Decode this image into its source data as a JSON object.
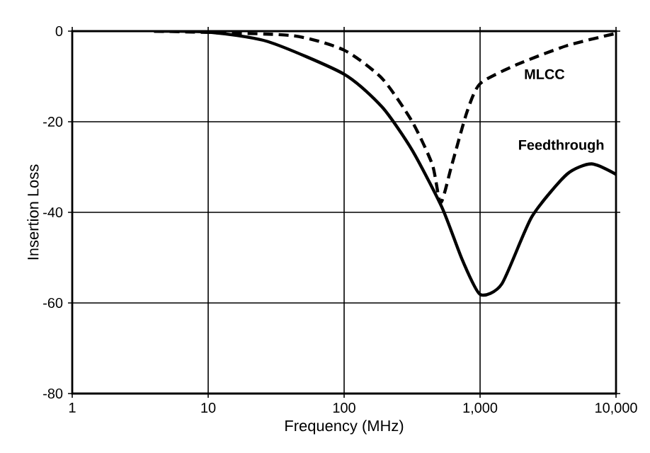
{
  "chart_data": {
    "type": "line",
    "xlabel": "Frequency (MHz)",
    "ylabel": "Insertion Loss",
    "log": "x",
    "xlim": [
      1,
      10000
    ],
    "ylim": [
      -80,
      0
    ],
    "xticks": [
      1,
      10,
      100,
      {
        "value": 1000,
        "label": "1,000"
      },
      {
        "value": 10000,
        "label": "10,000"
      }
    ],
    "yticks": [
      -80,
      -60,
      -40,
      -20,
      0
    ],
    "grid": true,
    "series": [
      {
        "name": "MLCC",
        "color": "#000000",
        "line_style": "dashed",
        "x": [
          4,
          7.8,
          42,
          100,
          191,
          317,
          446,
          513,
          620,
          800,
          1000,
          1860,
          4350,
          10000
        ],
        "values": [
          0,
          -0.2,
          -1,
          -4.2,
          -10.5,
          -20,
          -29.5,
          -37.9,
          -29.5,
          -17.9,
          -11.6,
          -7.4,
          -3.2,
          -0.5
        ]
      },
      {
        "name": "Feedthrough",
        "color": "#000000",
        "line_style": "solid",
        "x": [
          4,
          10,
          27.5,
          100,
          191,
          317,
          526,
          740,
          1000,
          1445,
          2400,
          4350,
          6600,
          10000
        ],
        "values": [
          0,
          -0.2,
          -2.3,
          -9.5,
          -16.8,
          -26.3,
          -39,
          -50.5,
          -58.1,
          -55.8,
          -41,
          -31.6,
          -29.3,
          -31.6
        ]
      }
    ]
  }
}
